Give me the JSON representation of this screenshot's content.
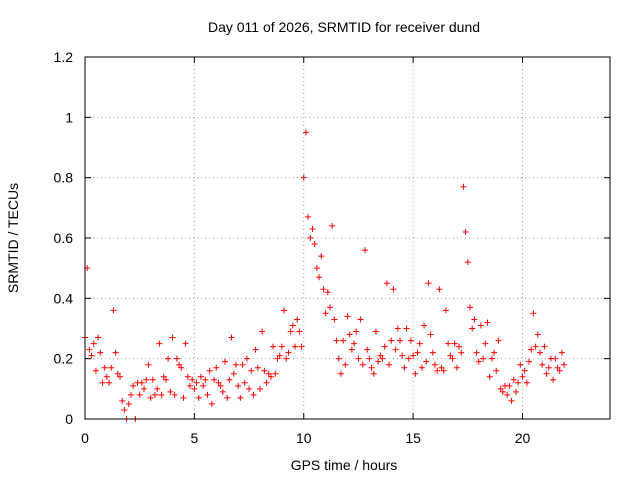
{
  "chart_data": {
    "type": "scatter",
    "title": "Day 011 of 2026, SRMTID for receiver dund",
    "xlabel": "GPS time / hours",
    "ylabel": "SRMTID / TECUs",
    "xlim": [
      0,
      24
    ],
    "ylim": [
      0,
      1.2
    ],
    "xticks": [
      0,
      5,
      10,
      15,
      20
    ],
    "yticks": [
      0,
      0.2,
      0.4,
      0.6,
      0.8,
      1,
      1.2
    ],
    "xtick_labels": [
      "0",
      "5",
      "10",
      "15",
      "20"
    ],
    "ytick_labels": [
      "0",
      "0.2",
      "0.4",
      "0.6",
      "0.8",
      "1",
      "1.2"
    ],
    "grid": true,
    "marker": "+",
    "color": "#ff0000",
    "series": [
      {
        "name": "SRMTID",
        "sample_interval_hours": 0.1,
        "x_start": 0.0,
        "values": [
          0.27,
          0.5,
          0.23,
          0.21,
          0.25,
          0.16,
          0.27,
          0.22,
          0.12,
          0.17,
          0.14,
          0.12,
          0.17,
          0.36,
          0.22,
          0.15,
          0.14,
          0.06,
          0.03,
          0.0,
          0.05,
          0.08,
          0.11,
          0.0,
          0.12,
          0.08,
          0.12,
          0.1,
          0.13,
          0.18,
          0.07,
          0.13,
          0.08,
          0.1,
          0.25,
          0.08,
          0.14,
          0.13,
          0.2,
          0.09,
          0.27,
          0.08,
          0.2,
          0.18,
          0.17,
          0.07,
          0.25,
          0.14,
          0.11,
          0.13,
          0.1,
          0.12,
          0.07,
          0.14,
          0.11,
          0.13,
          0.08,
          0.16,
          0.05,
          0.13,
          0.17,
          0.12,
          0.11,
          0.09,
          0.19,
          0.07,
          0.13,
          0.27,
          0.15,
          0.18,
          0.11,
          0.07,
          0.18,
          0.12,
          0.2,
          0.1,
          0.16,
          0.08,
          0.23,
          0.17,
          0.1,
          0.29,
          0.16,
          0.12,
          0.15,
          0.14,
          0.24,
          0.15,
          0.2,
          0.21,
          0.24,
          0.36,
          0.2,
          0.22,
          0.29,
          0.31,
          0.24,
          0.33,
          0.29,
          0.24,
          0.8,
          0.95,
          0.67,
          0.6,
          0.63,
          0.58,
          0.5,
          0.47,
          0.54,
          0.43,
          0.35,
          0.42,
          0.37,
          0.64,
          0.33,
          0.26,
          0.2,
          0.15,
          0.26,
          0.18,
          0.34,
          0.28,
          0.23,
          0.25,
          0.29,
          0.2,
          0.33,
          0.18,
          0.56,
          0.23,
          0.2,
          0.17,
          0.15,
          0.29,
          0.19,
          0.21,
          0.2,
          0.24,
          0.45,
          0.18,
          0.26,
          0.43,
          0.23,
          0.3,
          0.26,
          0.21,
          0.17,
          0.3,
          0.2,
          0.26,
          0.21,
          0.15,
          0.22,
          0.25,
          0.17,
          0.31,
          0.19,
          0.45,
          0.28,
          0.22,
          0.18,
          0.16,
          0.43,
          0.17,
          0.16,
          0.36,
          0.25,
          0.21,
          0.2,
          0.25,
          0.17,
          0.24,
          0.22,
          0.77,
          0.62,
          0.52,
          0.37,
          0.3,
          0.33,
          0.22,
          0.19,
          0.31,
          0.2,
          0.25,
          0.32,
          0.14,
          0.2,
          0.22,
          0.16,
          0.26,
          0.1,
          0.09,
          0.11,
          0.08,
          0.11,
          0.06,
          0.13,
          0.09,
          0.12,
          0.18,
          0.14,
          0.16,
          0.12,
          0.19,
          0.23,
          0.35,
          0.24,
          0.28,
          0.22,
          0.18,
          0.24,
          0.15,
          0.17,
          0.2,
          0.13,
          0.2,
          0.17,
          0.16,
          0.22,
          0.18
        ]
      }
    ]
  }
}
